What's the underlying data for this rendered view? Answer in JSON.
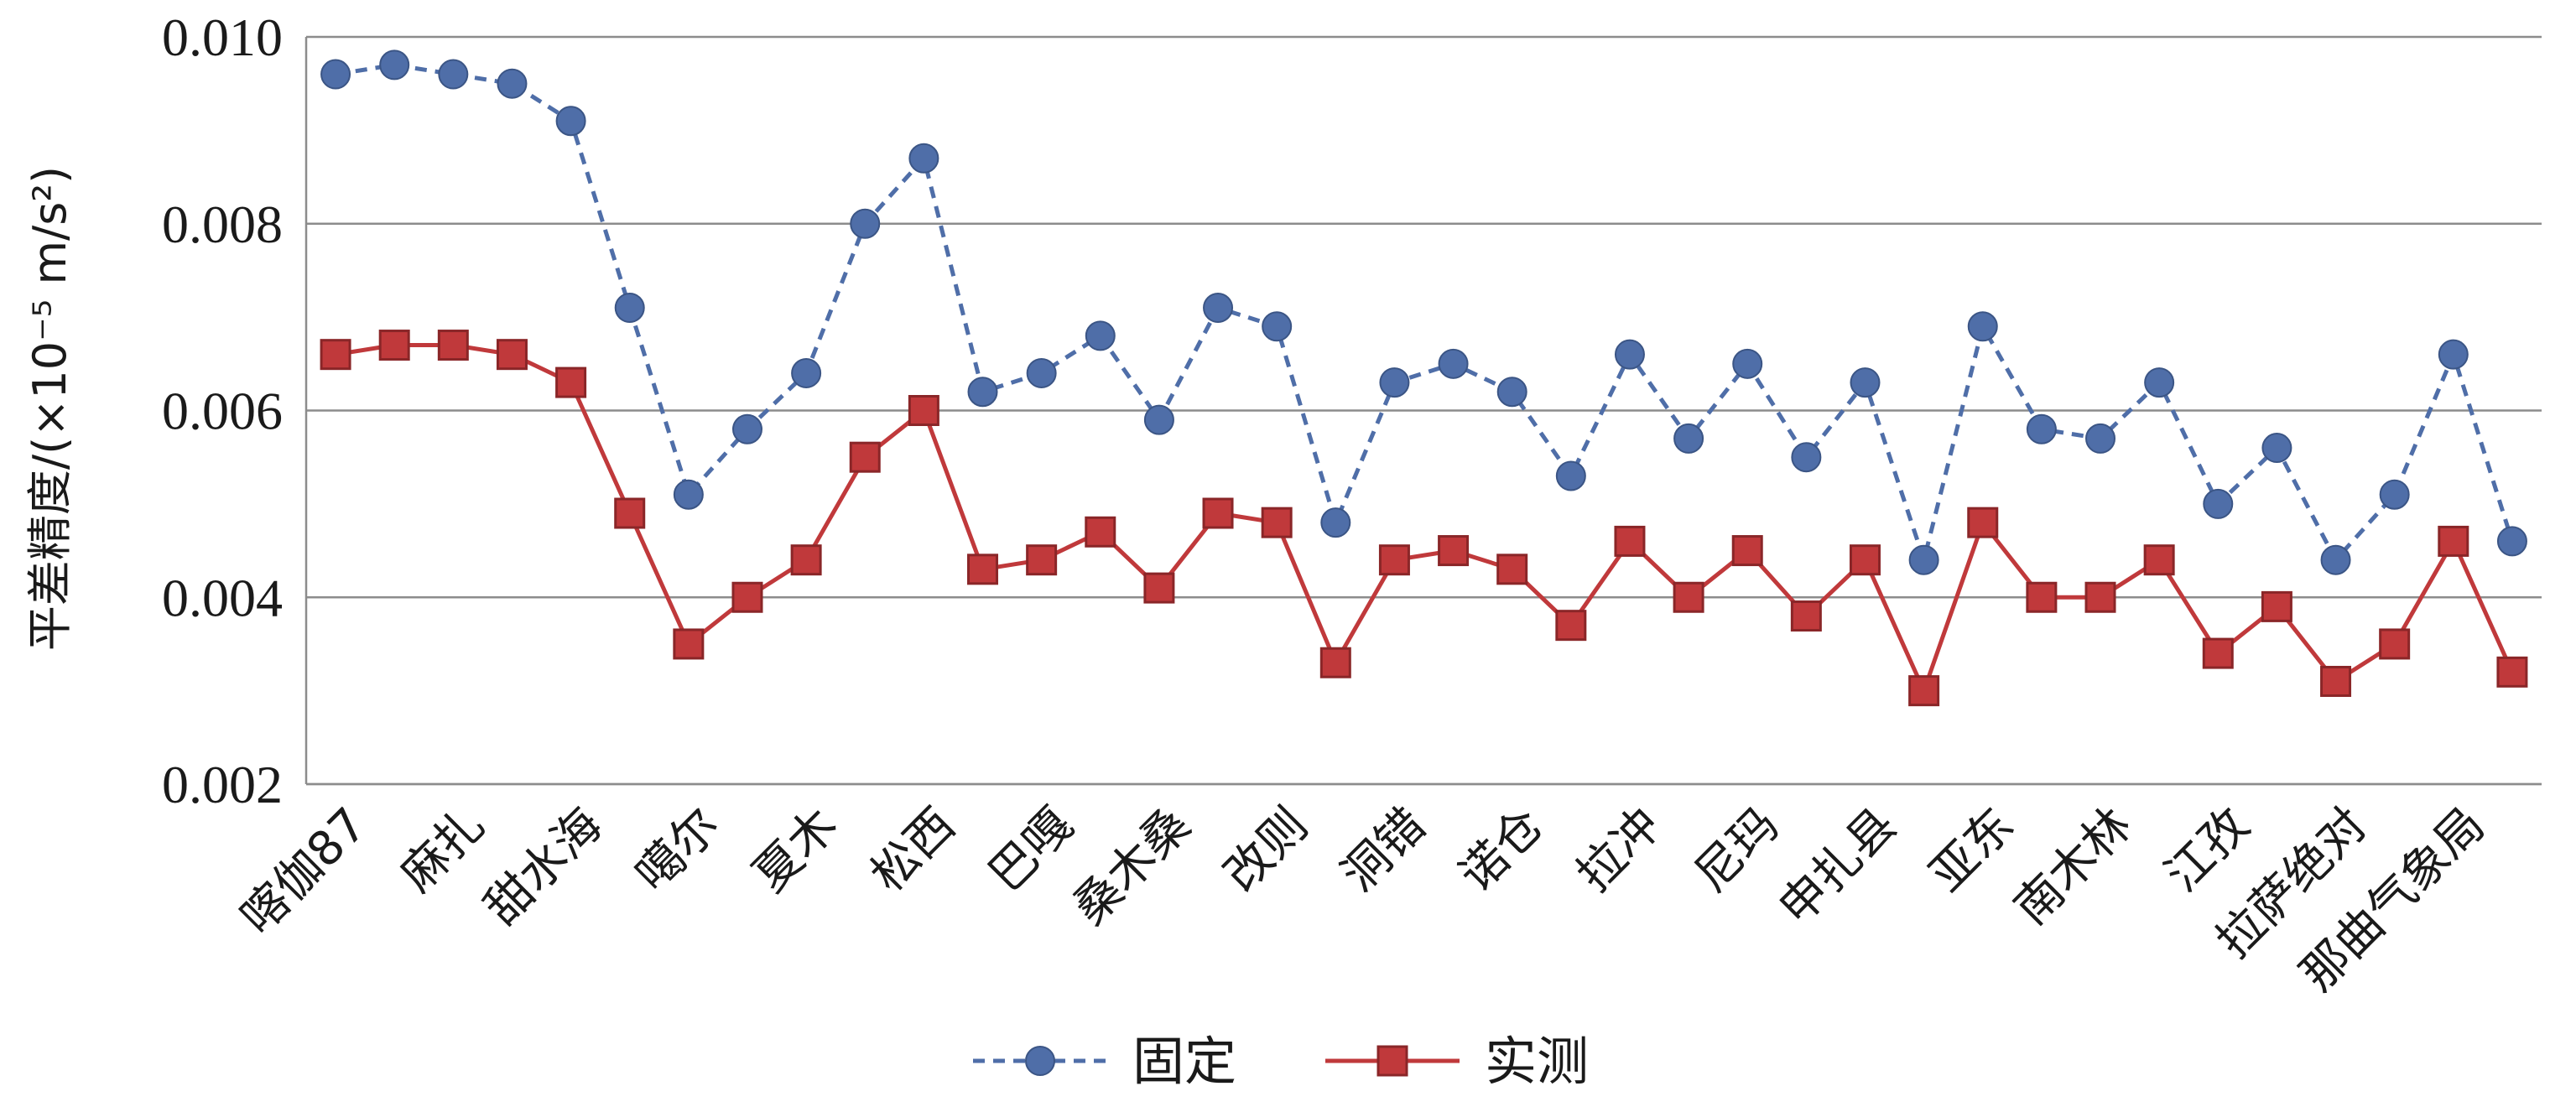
{
  "chart_data": {
    "type": "line",
    "title": "",
    "xlabel": "",
    "ylabel": "平差精度/(×10⁻⁵ m/s²)",
    "ylim": [
      0.002,
      0.01
    ],
    "yticks": [
      "0.002",
      "0.004",
      "0.006",
      "0.008",
      "0.010"
    ],
    "grid": "horizontal",
    "legend_position": "bottom",
    "categories": [
      "喀伽87",
      "",
      "麻扎",
      "",
      "甜水海",
      "",
      "噶尔",
      "",
      "夏木",
      "",
      "松西",
      "",
      "巴嘎",
      "",
      "桑木桑",
      "",
      "改则",
      "",
      "洞错",
      "",
      "诺仓",
      "",
      "拉冲",
      "",
      "尼玛",
      "",
      "申扎县",
      "",
      "亚东",
      "",
      "南木林",
      "",
      "江孜",
      "",
      "拉萨绝对",
      "",
      "那曲气象局",
      ""
    ],
    "series": [
      {
        "name": "固定",
        "color": "#4f6ea8",
        "line_style": "dashed",
        "marker": "circle",
        "values": [
          0.0096,
          0.0097,
          0.0096,
          0.0095,
          0.0091,
          0.0071,
          0.0051,
          0.0058,
          0.0064,
          0.008,
          0.0087,
          0.0062,
          0.0064,
          0.0068,
          0.0059,
          0.0071,
          0.0069,
          0.0048,
          0.0063,
          0.0065,
          0.0062,
          0.0053,
          0.0066,
          0.0057,
          0.0065,
          0.0055,
          0.0063,
          0.0044,
          0.0069,
          0.0058,
          0.0057,
          0.0063,
          0.005,
          0.0056,
          0.0044,
          0.0051,
          0.0066,
          0.0046
        ]
      },
      {
        "name": "实测",
        "color": "#c0393b",
        "line_style": "solid",
        "marker": "square",
        "values": [
          0.0066,
          0.0067,
          0.0067,
          0.0066,
          0.0063,
          0.0049,
          0.0035,
          0.004,
          0.0044,
          0.0055,
          0.006,
          0.0043,
          0.0044,
          0.0047,
          0.0041,
          0.0049,
          0.0048,
          0.0033,
          0.0044,
          0.0045,
          0.0043,
          0.0037,
          0.0046,
          0.004,
          0.0045,
          0.0038,
          0.0044,
          0.003,
          0.0048,
          0.004,
          0.004,
          0.0044,
          0.0034,
          0.0039,
          0.0031,
          0.0035,
          0.0046,
          0.0032
        ]
      }
    ]
  }
}
